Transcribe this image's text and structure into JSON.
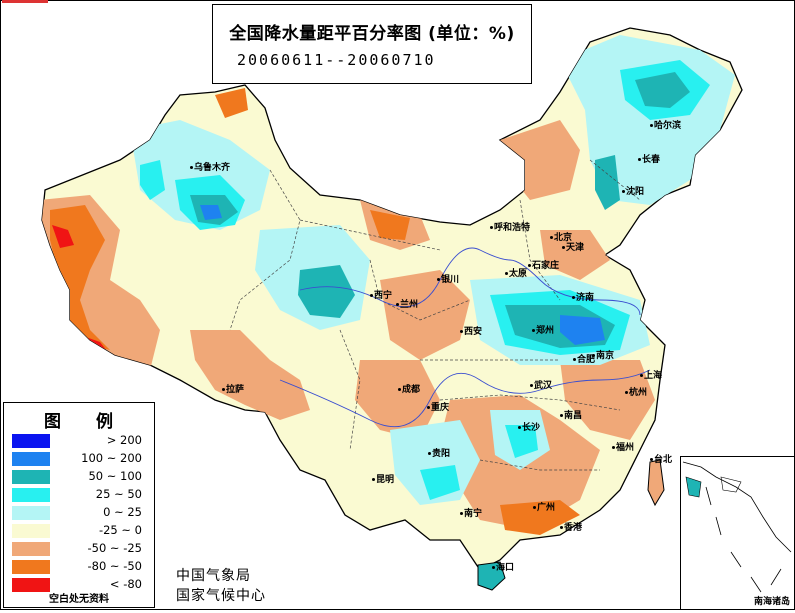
{
  "title": {
    "line1": "全国降水量距平百分率图 (单位：%)",
    "line2": "20060611--20060710"
  },
  "legend": {
    "title_chars": [
      "图",
      "例"
    ],
    "items": [
      {
        "label": "> 200",
        "color": "#0a14f0"
      },
      {
        "label": "100 ~ 200",
        "color": "#1e82f0"
      },
      {
        "label": "50 ~ 100",
        "color": "#1eb4b4"
      },
      {
        "label": "25 ~ 50",
        "color": "#28f0f0"
      },
      {
        "label": "0 ~ 25",
        "color": "#b4f5f5"
      },
      {
        "label": "-25 ~ 0",
        "color": "#fafad2"
      },
      {
        "label": "-50 ~ -25",
        "color": "#f0a878"
      },
      {
        "label": "-80 ~ -50",
        "color": "#f0781e"
      },
      {
        "label": "< -80",
        "color": "#f01414"
      }
    ],
    "note": "空白处无资料"
  },
  "agency": {
    "line1": "中国气象局",
    "line2": "国家气候中心"
  },
  "inset_label": "南海诸岛",
  "cities": [
    {
      "name": "乌鲁木齐"
    },
    {
      "name": "哈尔滨"
    },
    {
      "name": "长春"
    },
    {
      "name": "沈阳"
    },
    {
      "name": "呼和浩特"
    },
    {
      "name": "北京"
    },
    {
      "name": "天津"
    },
    {
      "name": "太原"
    },
    {
      "name": "石家庄"
    },
    {
      "name": "银川"
    },
    {
      "name": "西宁"
    },
    {
      "name": "兰州"
    },
    {
      "name": "济南"
    },
    {
      "name": "郑州"
    },
    {
      "name": "西安"
    },
    {
      "name": "南京"
    },
    {
      "name": "合肥"
    },
    {
      "name": "上海"
    },
    {
      "name": "杭州"
    },
    {
      "name": "武汉"
    },
    {
      "name": "成都"
    },
    {
      "name": "重庆"
    },
    {
      "name": "拉萨"
    },
    {
      "name": "南昌"
    },
    {
      "name": "长沙"
    },
    {
      "name": "福州"
    },
    {
      "name": "台北"
    },
    {
      "name": "贵阳"
    },
    {
      "name": "昆明"
    },
    {
      "name": "南宁"
    },
    {
      "name": "广州"
    },
    {
      "name": "香港"
    },
    {
      "name": "海口"
    }
  ]
}
